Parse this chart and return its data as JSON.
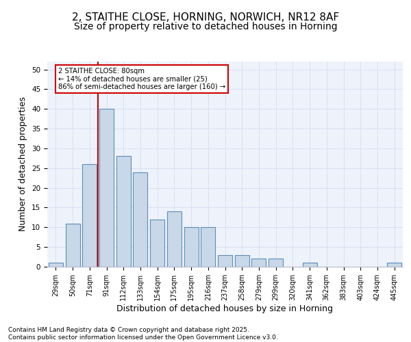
{
  "title_line1": "2, STAITHE CLOSE, HORNING, NORWICH, NR12 8AF",
  "title_line2": "Size of property relative to detached houses in Horning",
  "xlabel": "Distribution of detached houses by size in Horning",
  "ylabel": "Number of detached properties",
  "categories": [
    "29sqm",
    "50sqm",
    "71sqm",
    "91sqm",
    "112sqm",
    "133sqm",
    "154sqm",
    "175sqm",
    "195sqm",
    "216sqm",
    "237sqm",
    "258sqm",
    "279sqm",
    "299sqm",
    "320sqm",
    "341sqm",
    "362sqm",
    "383sqm",
    "403sqm",
    "424sqm",
    "445sqm"
  ],
  "values": [
    1,
    11,
    26,
    40,
    28,
    24,
    12,
    14,
    10,
    10,
    3,
    3,
    2,
    2,
    0,
    1,
    0,
    0,
    0,
    0,
    1
  ],
  "bar_color": "#c8d8e8",
  "bar_edge_color": "#5b8db8",
  "grid_color": "#d8dff0",
  "background_color": "#eef2fb",
  "vline_x": 2.5,
  "vline_color": "#cc0000",
  "annotation_line1": "2 STAITHE CLOSE: 80sqm",
  "annotation_line2": "← 14% of detached houses are smaller (25)",
  "annotation_line3": "86% of semi-detached houses are larger (160) →",
  "annotation_box_color": "#cc0000",
  "ylim": [
    0,
    52
  ],
  "yticks": [
    0,
    5,
    10,
    15,
    20,
    25,
    30,
    35,
    40,
    45,
    50
  ],
  "footer_text": "Contains HM Land Registry data © Crown copyright and database right 2025.\nContains public sector information licensed under the Open Government Licence v3.0.",
  "title_fontsize": 11,
  "subtitle_fontsize": 10,
  "axis_label_fontsize": 9,
  "tick_fontsize": 7,
  "footer_fontsize": 6.5
}
